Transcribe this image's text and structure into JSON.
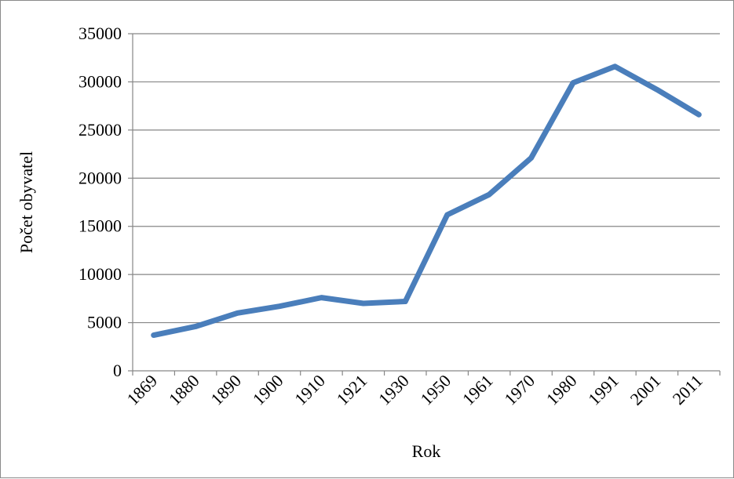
{
  "chart_data": {
    "type": "line",
    "title": "",
    "xlabel": "Rok",
    "ylabel": "Počet obyvatel",
    "ylim": [
      0,
      35000
    ],
    "yticks": [
      0,
      5000,
      10000,
      15000,
      20000,
      25000,
      30000,
      35000
    ],
    "grid": true,
    "legend": "none",
    "categories": [
      "1869",
      "1880",
      "1890",
      "1900",
      "1910",
      "1921",
      "1930",
      "1950",
      "1961",
      "1970",
      "1980",
      "1991",
      "2001",
      "2011"
    ],
    "series": [
      {
        "values": [
          3700,
          4600,
          6000,
          6700,
          7600,
          7000,
          7200,
          16200,
          18300,
          22100,
          29900,
          31600,
          29200,
          26600
        ],
        "color": "#4a7ebb"
      }
    ]
  }
}
